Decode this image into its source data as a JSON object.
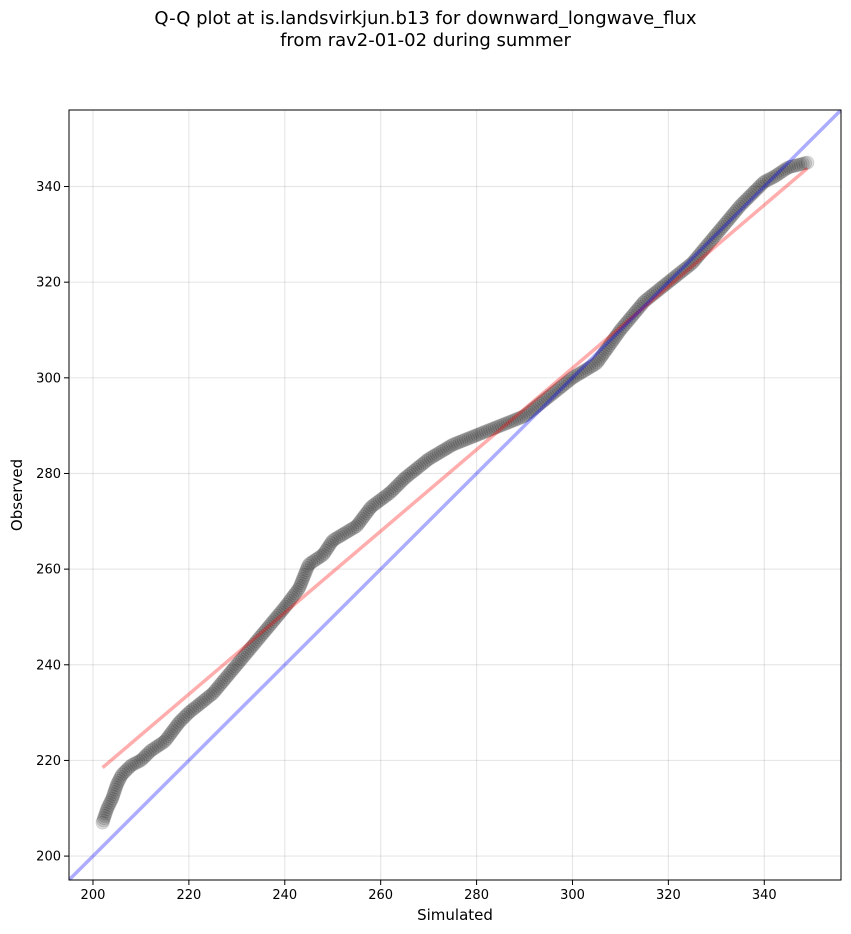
{
  "chart_data": {
    "type": "scatter",
    "title_lines": [
      "Q-Q plot at is.landsvirkjun.b13 for downward_longwave_flux",
      "from rav2-01-02 during summer"
    ],
    "xlabel": "Simulated",
    "ylabel": "Observed",
    "xlim": [
      195,
      356
    ],
    "ylim": [
      195,
      356
    ],
    "x_ticks": [
      200,
      220,
      240,
      260,
      280,
      300,
      320,
      340
    ],
    "y_ticks": [
      200,
      220,
      240,
      260,
      280,
      300,
      320,
      340
    ],
    "grid": true,
    "series": [
      {
        "kind": "points",
        "color": "#000000",
        "anchors": [
          [
            202,
            207
          ],
          [
            203,
            210
          ],
          [
            204,
            212
          ],
          [
            205,
            215
          ],
          [
            206,
            217
          ],
          [
            208,
            219
          ],
          [
            210,
            220
          ],
          [
            212,
            222
          ],
          [
            215,
            224
          ],
          [
            218,
            228
          ],
          [
            220,
            230
          ],
          [
            225,
            234
          ],
          [
            230,
            240
          ],
          [
            235,
            246
          ],
          [
            240,
            252
          ],
          [
            243,
            256
          ],
          [
            245,
            261
          ],
          [
            248,
            263
          ],
          [
            250,
            266
          ],
          [
            255,
            269
          ],
          [
            258,
            273
          ],
          [
            262,
            276
          ],
          [
            265,
            279
          ],
          [
            270,
            283
          ],
          [
            275,
            286
          ],
          [
            280,
            288
          ],
          [
            285,
            290
          ],
          [
            290,
            292
          ],
          [
            295,
            296
          ],
          [
            300,
            300
          ],
          [
            305,
            303
          ],
          [
            310,
            310
          ],
          [
            315,
            316
          ],
          [
            320,
            320
          ],
          [
            325,
            324
          ],
          [
            330,
            330
          ],
          [
            335,
            336
          ],
          [
            340,
            341
          ],
          [
            342,
            342
          ],
          [
            345,
            344
          ],
          [
            349,
            345
          ]
        ],
        "point_count": 420
      },
      {
        "kind": "line",
        "name": "",
        "color": "#ff0000",
        "x": [
          202,
          349
        ],
        "y": [
          218.5,
          343.8
        ]
      },
      {
        "kind": "line",
        "name": "",
        "color": "#0000ff",
        "x": [
          195,
          356
        ],
        "y": [
          195,
          356
        ]
      }
    ]
  }
}
